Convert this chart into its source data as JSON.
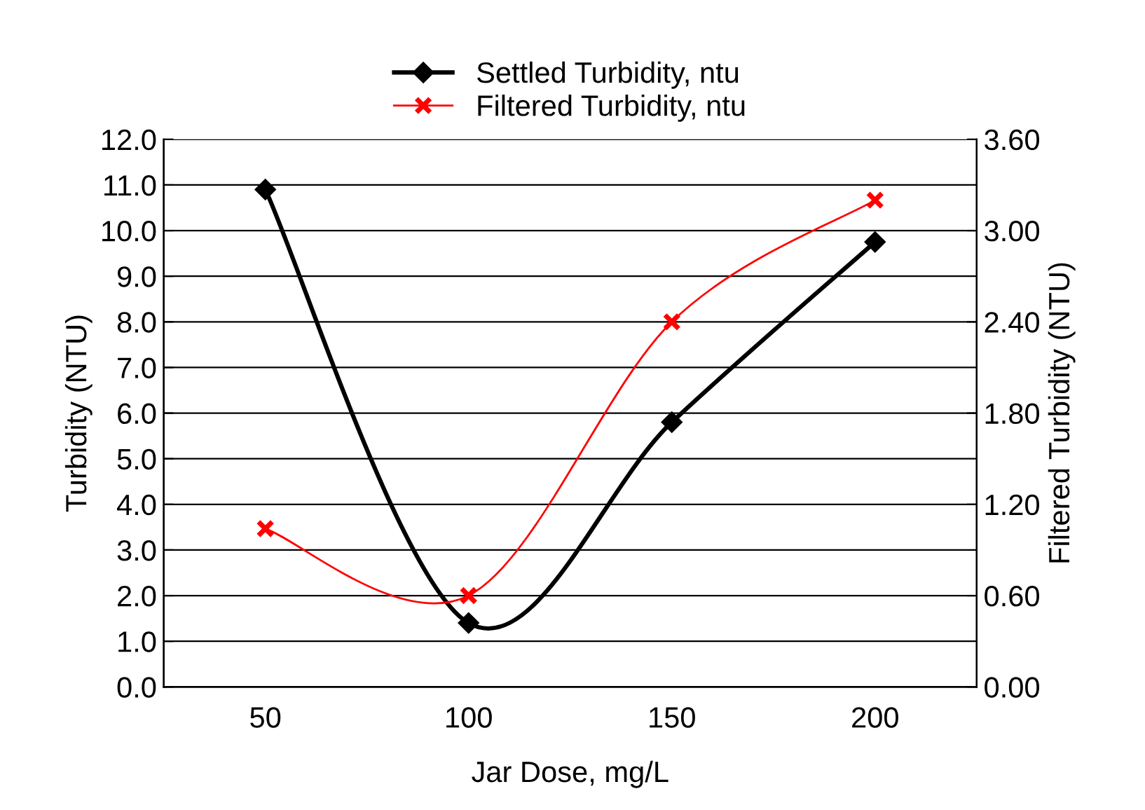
{
  "chart_data": {
    "type": "line",
    "xlabel": "Jar Dose, mg/L",
    "ylabel": "Turbidity (NTU)",
    "y2label": "Filtered Turbidity (NTU)",
    "categories": [
      "50",
      "100",
      "150",
      "200"
    ],
    "series": [
      {
        "name": "Settled Turbidity, ntu",
        "color": "#000000",
        "marker": "diamond",
        "values": [
          10.9,
          1.4,
          5.8,
          9.75
        ]
      },
      {
        "name": "Filtered Turbidity, ntu",
        "color": "#ff0000",
        "marker": "cross",
        "axis": "y2",
        "values": [
          1.04,
          0.6,
          2.4,
          3.2
        ]
      }
    ],
    "ylim": [
      0,
      12
    ],
    "yticks": [
      {
        "value": 0,
        "label": "0.0"
      },
      {
        "value": 1,
        "label": "1.0"
      },
      {
        "value": 2,
        "label": "2.0"
      },
      {
        "value": 3,
        "label": "3.0"
      },
      {
        "value": 4,
        "label": "4.0"
      },
      {
        "value": 5,
        "label": "5.0"
      },
      {
        "value": 6,
        "label": "6.0"
      },
      {
        "value": 7,
        "label": "7.0"
      },
      {
        "value": 8,
        "label": "8.0"
      },
      {
        "value": 9,
        "label": "9.0"
      },
      {
        "value": 10,
        "label": "10.0"
      },
      {
        "value": 11,
        "label": "11.0"
      },
      {
        "value": 12,
        "label": "12.0"
      }
    ],
    "y2lim": [
      0,
      3.6
    ],
    "y2ticks": [
      {
        "value": 0,
        "label": "0.00"
      },
      {
        "value": 0.6,
        "label": "0.60"
      },
      {
        "value": 1.2,
        "label": "1.20"
      },
      {
        "value": 1.8,
        "label": "1.80"
      },
      {
        "value": 2.4,
        "label": "2.40"
      },
      {
        "value": 3.0,
        "label": "3.00"
      },
      {
        "value": 3.6,
        "label": "3.60"
      }
    ],
    "grid": "y",
    "legend": "top"
  }
}
